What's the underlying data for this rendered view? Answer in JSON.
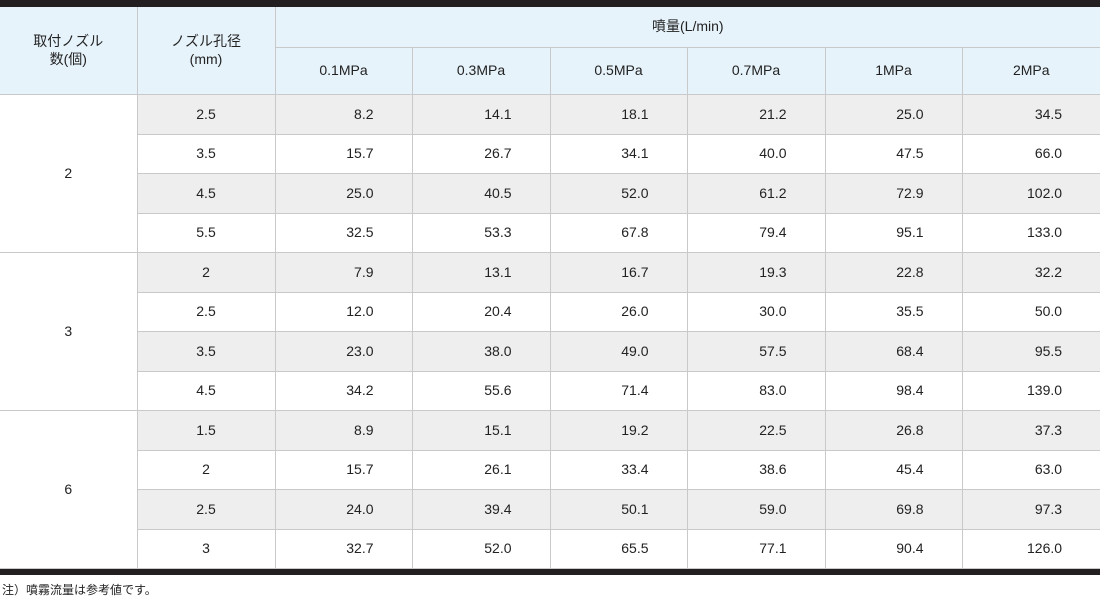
{
  "header": {
    "count_label_line1": "取付ノズル",
    "count_label_line2": "数(個)",
    "diameter_label_line1": "ノズル孔径",
    "diameter_label_line2": "(mm)",
    "flow_label": "噴量(L/min)",
    "pressures": [
      "0.1MPa",
      "0.3MPa",
      "0.5MPa",
      "0.7MPa",
      "1MPa",
      "2MPa"
    ]
  },
  "groups": [
    {
      "count": "2",
      "rows": [
        {
          "diameter": "2.5",
          "values": [
            "8.2",
            "14.1",
            "18.1",
            "21.2",
            "25.0",
            "34.5"
          ]
        },
        {
          "diameter": "3.5",
          "values": [
            "15.7",
            "26.7",
            "34.1",
            "40.0",
            "47.5",
            "66.0"
          ]
        },
        {
          "diameter": "4.5",
          "values": [
            "25.0",
            "40.5",
            "52.0",
            "61.2",
            "72.9",
            "102.0"
          ]
        },
        {
          "diameter": "5.5",
          "values": [
            "32.5",
            "53.3",
            "67.8",
            "79.4",
            "95.1",
            "133.0"
          ]
        }
      ]
    },
    {
      "count": "3",
      "rows": [
        {
          "diameter": "2",
          "values": [
            "7.9",
            "13.1",
            "16.7",
            "19.3",
            "22.8",
            "32.2"
          ]
        },
        {
          "diameter": "2.5",
          "values": [
            "12.0",
            "20.4",
            "26.0",
            "30.0",
            "35.5",
            "50.0"
          ]
        },
        {
          "diameter": "3.5",
          "values": [
            "23.0",
            "38.0",
            "49.0",
            "57.5",
            "68.4",
            "95.5"
          ]
        },
        {
          "diameter": "4.5",
          "values": [
            "34.2",
            "55.6",
            "71.4",
            "83.0",
            "98.4",
            "139.0"
          ]
        }
      ]
    },
    {
      "count": "6",
      "rows": [
        {
          "diameter": "1.5",
          "values": [
            "8.9",
            "15.1",
            "19.2",
            "22.5",
            "26.8",
            "37.3"
          ]
        },
        {
          "diameter": "2",
          "values": [
            "15.7",
            "26.1",
            "33.4",
            "38.6",
            "45.4",
            "63.0"
          ]
        },
        {
          "diameter": "2.5",
          "values": [
            "24.0",
            "39.4",
            "50.1",
            "59.0",
            "69.8",
            "97.3"
          ]
        },
        {
          "diameter": "3",
          "values": [
            "32.7",
            "52.0",
            "65.5",
            "77.1",
            "90.4",
            "126.0"
          ]
        }
      ]
    }
  ],
  "note": "注）噴霧流量は参考値です。",
  "colors": {
    "header_background": "#e7f3fb",
    "shaded_row_background": "#eeeeee",
    "rule_color": "#231f20"
  }
}
